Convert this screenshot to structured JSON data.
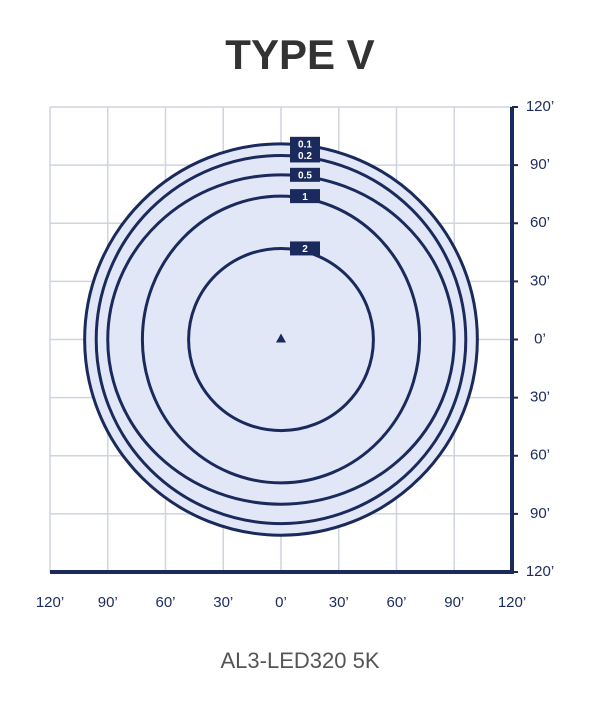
{
  "chart_data": {
    "type": "isoline",
    "title": "TYPE V",
    "subtitle": "AL3-LED320 5K",
    "xlim": [
      -120,
      120
    ],
    "ylim": [
      -120,
      120
    ],
    "xticks": [
      {
        "value": -120,
        "label": "120’"
      },
      {
        "value": -90,
        "label": "90’"
      },
      {
        "value": -60,
        "label": "60’"
      },
      {
        "value": -30,
        "label": "30’"
      },
      {
        "value": 0,
        "label": "0’"
      },
      {
        "value": 30,
        "label": "30’"
      },
      {
        "value": 60,
        "label": "60’"
      },
      {
        "value": 90,
        "label": "90’"
      },
      {
        "value": 120,
        "label": "120’"
      }
    ],
    "yticks": [
      {
        "value": -120,
        "label": "120’"
      },
      {
        "value": -90,
        "label": "90’"
      },
      {
        "value": -60,
        "label": "60’"
      },
      {
        "value": -30,
        "label": "30’"
      },
      {
        "value": 0,
        "label": "0’"
      },
      {
        "value": 30,
        "label": "30’"
      },
      {
        "value": 60,
        "label": "60’"
      },
      {
        "value": 90,
        "label": "90’"
      },
      {
        "value": 120,
        "label": "120’"
      }
    ],
    "grid": true,
    "color": "#1b2a5c",
    "fill": "#e2e7f7",
    "contours": [
      {
        "level": 0.1,
        "rx": 102,
        "ry": 101
      },
      {
        "level": 0.2,
        "rx": 96,
        "ry": 95
      },
      {
        "level": 0.5,
        "rx": 90,
        "ry": 85
      },
      {
        "level": 1,
        "rx": 72,
        "ry": 74
      },
      {
        "level": 2,
        "rx": 48,
        "ry": 47
      }
    ]
  }
}
